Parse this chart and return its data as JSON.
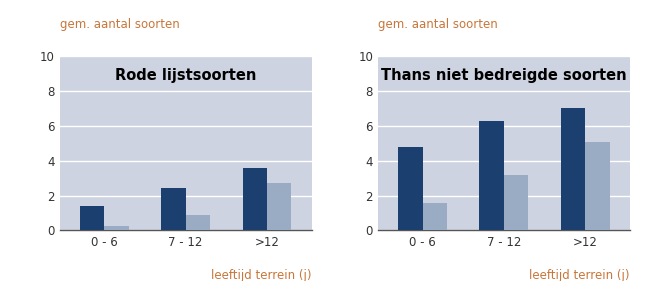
{
  "chart1": {
    "title": "Rode lijstsoorten",
    "categories": [
      "0 - 6",
      "7 - 12",
      ">12"
    ],
    "series1": [
      1.4,
      2.45,
      3.6
    ],
    "series2": [
      0.25,
      0.9,
      2.75
    ],
    "ylabel": "gem. aantal soorten",
    "xlabel": "leeftijd terrein (j)",
    "ylim": [
      0,
      10
    ],
    "yticks": [
      0,
      2,
      4,
      6,
      8,
      10
    ]
  },
  "chart2": {
    "title": "Thans niet bedreigde soorten",
    "categories": [
      "0 - 6",
      "7 - 12",
      ">12"
    ],
    "series1": [
      4.8,
      6.3,
      7.05
    ],
    "series2": [
      1.55,
      3.2,
      5.1
    ],
    "ylabel": "gem. aantal soorten",
    "xlabel": "leeftijd terrein (j)",
    "ylim": [
      0,
      10
    ],
    "yticks": [
      0,
      2,
      4,
      6,
      8,
      10
    ]
  },
  "color_dark": "#1b3f6e",
  "color_light": "#9aabc4",
  "bg_color": "#cdd3e0",
  "fig_bg": "#ffffff",
  "bar_width": 0.3,
  "title_fontsize": 10.5,
  "label_fontsize": 8.5,
  "tick_fontsize": 8.5,
  "ylabel_color": "#c8763a",
  "xlabel_color": "#c8763a",
  "title_color": "#000000",
  "grid_color": "#ffffff",
  "tick_color": "#333333"
}
